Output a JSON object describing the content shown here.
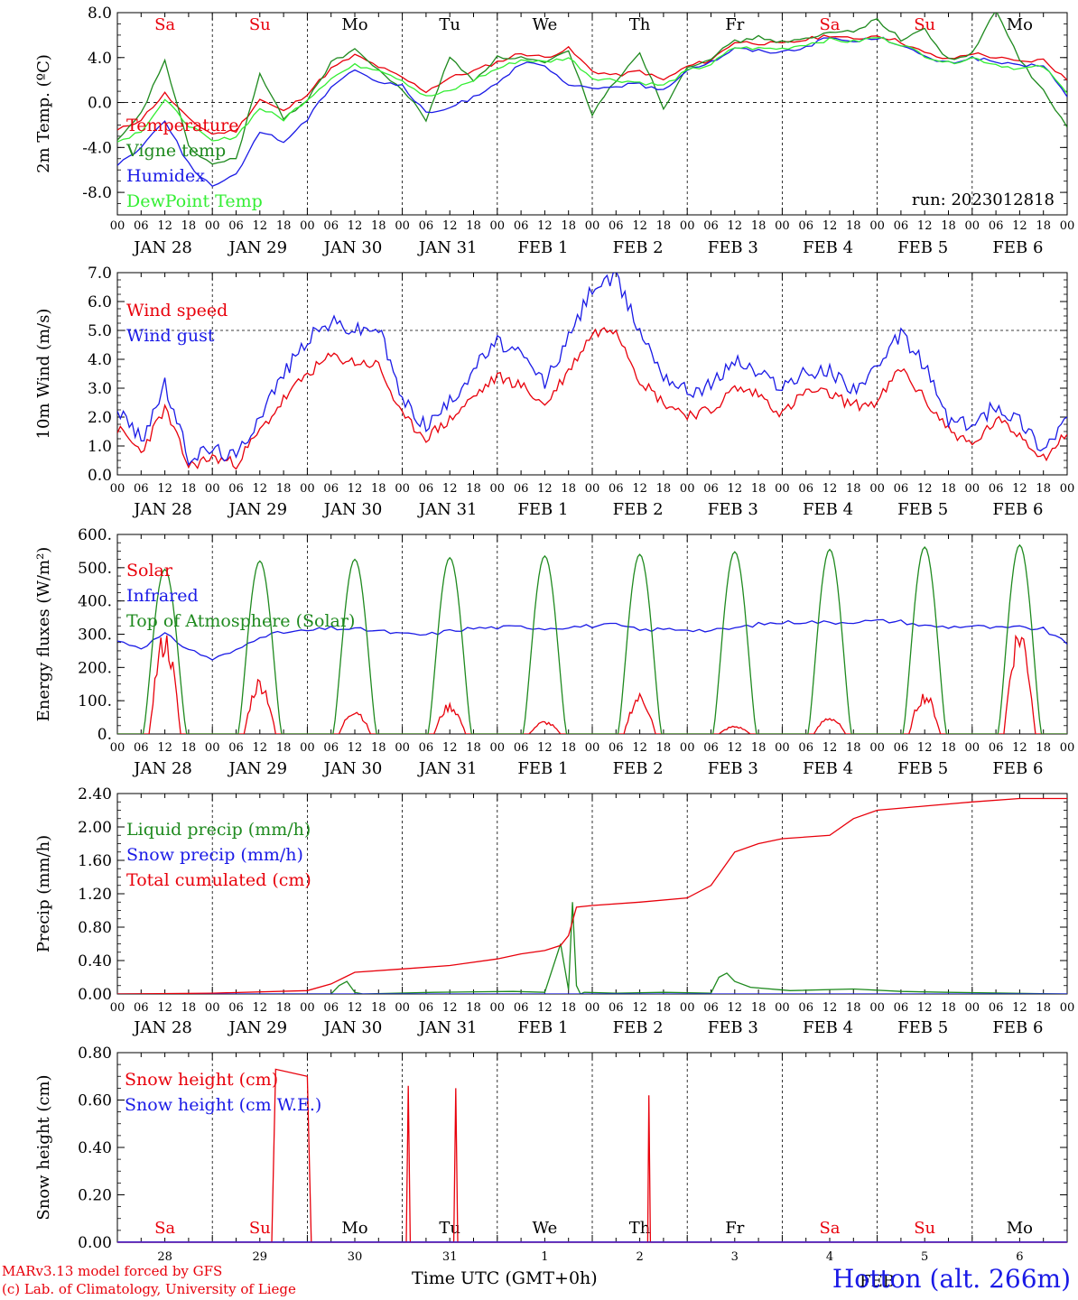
{
  "footer": {
    "model_line": "MARv3.13 model forced by GFS",
    "credit_line": "(c) Lab. of Climatology, University of Liege",
    "xlabel": "Time UTC (GMT+0h)",
    "station": "Hotton (alt. 266m)",
    "month_mark": "FEB"
  },
  "colors": {
    "red": "#e8000b",
    "green": "#1f8a1f",
    "blue": "#1a1ae6",
    "lightgreen": "#33ee33"
  },
  "chart_data": [
    {
      "type": "line",
      "ylabel": "2m Temp. (ºC)",
      "ylim": [
        -10,
        8
      ],
      "yticks": [
        "8.0",
        "4.0",
        "0.0",
        "-4.0",
        "-8.0"
      ],
      "ytick_values": [
        8,
        4,
        0,
        -4,
        -8
      ],
      "annotation": "run: 2023012818",
      "x_unit": "hours since Jan 28 00 UTC",
      "day_names_top": [
        "Sa",
        "Su",
        "Mo",
        "Tu",
        "We",
        "Th",
        "Fr",
        "Sa",
        "Su",
        "Mo"
      ],
      "weekend_flags": [
        true,
        true,
        false,
        false,
        false,
        false,
        false,
        true,
        true,
        false
      ],
      "series": [
        {
          "name": "Temperature",
          "color": "#e8000b",
          "x": [
            0,
            6,
            12,
            18,
            24,
            30,
            36,
            42,
            48,
            54,
            60,
            66,
            72,
            78,
            84,
            90,
            96,
            102,
            108,
            114,
            120,
            126,
            132,
            138,
            144,
            150,
            156,
            162,
            168,
            174,
            180,
            186,
            192,
            198,
            204,
            210,
            216,
            222,
            228,
            234,
            240
          ],
          "y": [
            -2.5,
            -1.5,
            0.8,
            -1.5,
            -2.8,
            -2.5,
            0.3,
            -0.8,
            0.8,
            3.0,
            4.2,
            3.2,
            2.2,
            1.0,
            2.2,
            2.8,
            3.6,
            4.4,
            4.0,
            4.8,
            2.8,
            2.4,
            2.8,
            2.0,
            3.2,
            3.8,
            5.4,
            5.3,
            5.2,
            5.6,
            6.0,
            5.6,
            6.0,
            5.4,
            4.4,
            3.8,
            4.4,
            4.0,
            3.6,
            3.8,
            2.0
          ]
        },
        {
          "name": "Vigne temp",
          "color": "#1f8a1f",
          "x": [
            0,
            6,
            12,
            18,
            24,
            30,
            36,
            42,
            48,
            54,
            60,
            66,
            72,
            78,
            84,
            90,
            96,
            102,
            108,
            114,
            120,
            126,
            132,
            138,
            144,
            150,
            156,
            162,
            168,
            174,
            180,
            186,
            192,
            198,
            204,
            210,
            216,
            222,
            228,
            234,
            240
          ],
          "y": [
            -3.5,
            -1.0,
            3.8,
            -4.0,
            -5.5,
            -5.0,
            2.5,
            -1.5,
            0.3,
            3.5,
            4.8,
            2.8,
            1.2,
            -1.5,
            4.0,
            2.0,
            4.0,
            4.0,
            3.5,
            4.5,
            -1.0,
            2.0,
            4.5,
            -0.5,
            3.2,
            4.0,
            5.4,
            5.8,
            5.4,
            5.6,
            6.2,
            6.4,
            7.4,
            5.6,
            6.5,
            3.8,
            4.3,
            8.2,
            3.8,
            1.0,
            -2.2
          ]
        },
        {
          "name": "Humidex",
          "color": "#1a1ae6",
          "x": [
            0,
            6,
            12,
            18,
            24,
            30,
            36,
            42,
            48,
            54,
            60,
            66,
            72,
            78,
            84,
            90,
            96,
            102,
            108,
            114,
            120,
            126,
            132,
            138,
            144,
            150,
            156,
            162,
            168,
            174,
            180,
            186,
            192,
            198,
            204,
            210,
            216,
            222,
            228,
            234,
            240
          ],
          "y": [
            -5.5,
            -4.0,
            -1.5,
            -5.5,
            -7.5,
            -6.5,
            -2.5,
            -3.5,
            -1.5,
            1.5,
            3.0,
            1.8,
            1.5,
            -1.0,
            -0.5,
            0.5,
            1.8,
            3.5,
            3.2,
            1.5,
            1.2,
            1.5,
            1.6,
            1.0,
            3.0,
            3.6,
            4.8,
            4.6,
            4.5,
            5.0,
            5.8,
            5.4,
            5.8,
            5.2,
            4.0,
            3.5,
            4.0,
            3.6,
            3.2,
            3.4,
            0.5
          ]
        },
        {
          "name": "DewPoint Temp",
          "color": "#33ee33",
          "x": [
            0,
            6,
            12,
            18,
            24,
            30,
            36,
            42,
            48,
            54,
            60,
            66,
            72,
            78,
            84,
            90,
            96,
            102,
            108,
            114,
            120,
            126,
            132,
            138,
            144,
            150,
            156,
            162,
            168,
            174,
            180,
            186,
            192,
            198,
            204,
            210,
            216,
            222,
            228,
            234,
            240
          ],
          "y": [
            -3.5,
            -2.5,
            0.2,
            -2.0,
            -3.5,
            -3.0,
            -0.5,
            -1.5,
            0.3,
            2.2,
            3.3,
            3.0,
            2.0,
            0.5,
            1.0,
            2.0,
            3.0,
            3.8,
            3.6,
            4.0,
            2.2,
            2.0,
            1.8,
            1.5,
            2.8,
            3.4,
            4.9,
            4.8,
            4.8,
            5.2,
            5.6,
            5.4,
            5.8,
            5.2,
            4.2,
            3.5,
            4.0,
            3.4,
            3.0,
            3.2,
            0.8
          ]
        }
      ]
    },
    {
      "type": "line",
      "ylabel": "10m Wind (m/s)",
      "ylim": [
        0,
        7
      ],
      "yticks": [
        "7.0",
        "6.0",
        "5.0",
        "4.0",
        "3.0",
        "2.0",
        "1.0",
        "0.0"
      ],
      "ytick_values": [
        7,
        6,
        5,
        4,
        3,
        2,
        1,
        0
      ],
      "series": [
        {
          "name": "Wind speed",
          "color": "#e8000b",
          "x": [
            0,
            6,
            12,
            18,
            24,
            30,
            36,
            42,
            48,
            54,
            60,
            66,
            72,
            78,
            84,
            90,
            96,
            102,
            108,
            114,
            120,
            126,
            132,
            138,
            144,
            150,
            156,
            162,
            168,
            174,
            180,
            186,
            192,
            198,
            204,
            210,
            216,
            222,
            228,
            234,
            240
          ],
          "y": [
            1.6,
            0.8,
            2.3,
            0.3,
            0.6,
            0.4,
            1.5,
            2.6,
            3.5,
            4.1,
            3.9,
            3.8,
            2.0,
            1.3,
            1.9,
            2.7,
            3.4,
            3.1,
            2.4,
            3.6,
            4.9,
            5.1,
            3.3,
            2.5,
            2.1,
            2.2,
            3.0,
            2.8,
            2.1,
            2.9,
            2.8,
            2.4,
            2.5,
            3.7,
            2.6,
            1.6,
            1.0,
            1.9,
            1.4,
            0.6,
            1.4
          ]
        },
        {
          "name": "Wind gust",
          "color": "#1a1ae6",
          "x": [
            0,
            6,
            12,
            18,
            24,
            30,
            36,
            42,
            48,
            54,
            60,
            66,
            72,
            78,
            84,
            90,
            96,
            102,
            108,
            114,
            120,
            126,
            132,
            138,
            144,
            150,
            156,
            162,
            168,
            174,
            180,
            186,
            192,
            198,
            204,
            210,
            216,
            222,
            228,
            234,
            240
          ],
          "y": [
            2.3,
            1.2,
            3.1,
            0.6,
            0.9,
            0.6,
            2.1,
            3.5,
            4.7,
            5.3,
            5.0,
            5.1,
            2.6,
            1.7,
            2.5,
            3.7,
            4.6,
            4.1,
            3.2,
            4.7,
            6.5,
            6.8,
            5.0,
            3.5,
            2.9,
            3.1,
            4.0,
            3.5,
            3.1,
            3.5,
            3.6,
            3.0,
            3.6,
            4.9,
            3.8,
            1.9,
            1.7,
            2.4,
            1.9,
            0.9,
            2.0
          ]
        }
      ]
    },
    {
      "type": "line",
      "ylabel": "Energy fluxes (W/m²)",
      "ylim": [
        0,
        600
      ],
      "yticks": [
        "600.",
        "500.",
        "400.",
        "300.",
        "200.",
        "100.",
        "0."
      ],
      "ytick_values": [
        600,
        500,
        400,
        300,
        200,
        100,
        0
      ],
      "day_peaks_toa": [
        495,
        520,
        525,
        530,
        535,
        540,
        548,
        555,
        562,
        568
      ],
      "day_peaks_solar": [
        320,
        175,
        80,
        95,
        40,
        125,
        25,
        55,
        130,
        340
      ],
      "series": [
        {
          "name": "Solar",
          "color": "#e8000b"
        },
        {
          "name": "Infrared",
          "color": "#1a1ae6",
          "x": [
            0,
            6,
            12,
            18,
            24,
            30,
            36,
            42,
            48,
            54,
            60,
            66,
            72,
            78,
            84,
            90,
            96,
            102,
            108,
            114,
            120,
            126,
            132,
            138,
            144,
            150,
            156,
            162,
            168,
            174,
            180,
            186,
            192,
            198,
            204,
            210,
            216,
            222,
            228,
            234,
            240
          ],
          "y": [
            280,
            260,
            300,
            255,
            225,
            250,
            295,
            305,
            310,
            318,
            315,
            310,
            300,
            298,
            310,
            318,
            320,
            322,
            318,
            322,
            325,
            328,
            312,
            315,
            315,
            310,
            318,
            330,
            335,
            338,
            335,
            338,
            340,
            338,
            325,
            322,
            325,
            318,
            320,
            315,
            270
          ]
        },
        {
          "name": "Top of Atmosphere (Solar)",
          "color": "#1f8a1f"
        }
      ]
    },
    {
      "type": "line",
      "ylabel": "Precip (mm/h)",
      "ylim": [
        0,
        2.4
      ],
      "yticks": [
        "2.40",
        "2.00",
        "1.60",
        "1.20",
        "0.80",
        "0.40",
        "0.00"
      ],
      "ytick_values": [
        2.4,
        2.0,
        1.6,
        1.2,
        0.8,
        0.4,
        0.0
      ],
      "series": [
        {
          "name": "Liquid precip (mm/h)",
          "color": "#1f8a1f",
          "x": [
            0,
            54,
            56,
            58,
            60,
            62,
            80,
            100,
            108,
            112,
            114,
            115,
            116,
            117,
            118,
            126,
            138,
            150,
            152,
            154,
            156,
            160,
            170,
            186,
            198,
            210,
            240
          ],
          "y": [
            0,
            0,
            0.1,
            0.15,
            0.02,
            0,
            0.02,
            0.03,
            0.02,
            0.6,
            0.05,
            1.1,
            0.1,
            0.0,
            0.02,
            0.01,
            0.02,
            0.01,
            0.2,
            0.25,
            0.15,
            0.08,
            0.04,
            0.06,
            0.03,
            0.02,
            0
          ]
        },
        {
          "name": "Snow precip (mm/h)",
          "color": "#1a1ae6",
          "x": [
            0,
            240
          ],
          "y": [
            0,
            0
          ]
        },
        {
          "name": "Total cumulated (cm)",
          "color": "#e8000b",
          "x": [
            0,
            24,
            48,
            54,
            60,
            72,
            84,
            96,
            102,
            108,
            112,
            114,
            116,
            120,
            132,
            144,
            150,
            156,
            162,
            168,
            180,
            186,
            192,
            204,
            216,
            228,
            240
          ],
          "y": [
            0,
            0.01,
            0.04,
            0.12,
            0.26,
            0.3,
            0.34,
            0.42,
            0.48,
            0.52,
            0.58,
            0.7,
            1.04,
            1.06,
            1.1,
            1.15,
            1.3,
            1.7,
            1.8,
            1.86,
            1.9,
            2.1,
            2.2,
            2.25,
            2.3,
            2.34,
            2.34
          ]
        }
      ]
    },
    {
      "type": "line",
      "ylabel": "Snow height (cm)",
      "ylim": [
        0,
        0.8
      ],
      "yticks": [
        "0.80",
        "0.60",
        "0.40",
        "0.20",
        "0.00"
      ],
      "ytick_values": [
        0.8,
        0.6,
        0.4,
        0.2,
        0.0
      ],
      "day_numbers": [
        "28",
        "29",
        "30",
        "31",
        "1",
        "2",
        "3",
        "4",
        "5",
        "6"
      ],
      "day_names": [
        "Sa",
        "Su",
        "Mo",
        "Tu",
        "We",
        "Th",
        "Fr",
        "Sa",
        "Su",
        "Mo"
      ],
      "weekend_flags": [
        true,
        true,
        false,
        false,
        false,
        false,
        false,
        true,
        true,
        false
      ],
      "series": [
        {
          "name": "Snow height (cm)",
          "color": "#e8000b",
          "x": [
            0,
            39,
            40,
            48,
            49,
            73,
            73.5,
            74,
            85,
            85.5,
            86,
            134,
            134.3,
            134.7,
            240
          ],
          "y": [
            0,
            0,
            0.73,
            0.7,
            0,
            0,
            0.66,
            0,
            0,
            0.65,
            0,
            0,
            0.62,
            0,
            0
          ]
        },
        {
          "name": "Snow height (cm W.E.)",
          "color": "#1a1ae6",
          "x": [
            0,
            240
          ],
          "y": [
            0,
            0
          ]
        }
      ]
    }
  ],
  "day_axis": {
    "hour_labels": [
      "00",
      "06",
      "12",
      "18"
    ],
    "final_label": "00",
    "dates": [
      "JAN 28",
      "JAN 29",
      "JAN 30",
      "JAN 31",
      "FEB  1",
      "FEB  2",
      "FEB  3",
      "FEB  4",
      "FEB  5",
      "FEB  6"
    ]
  }
}
